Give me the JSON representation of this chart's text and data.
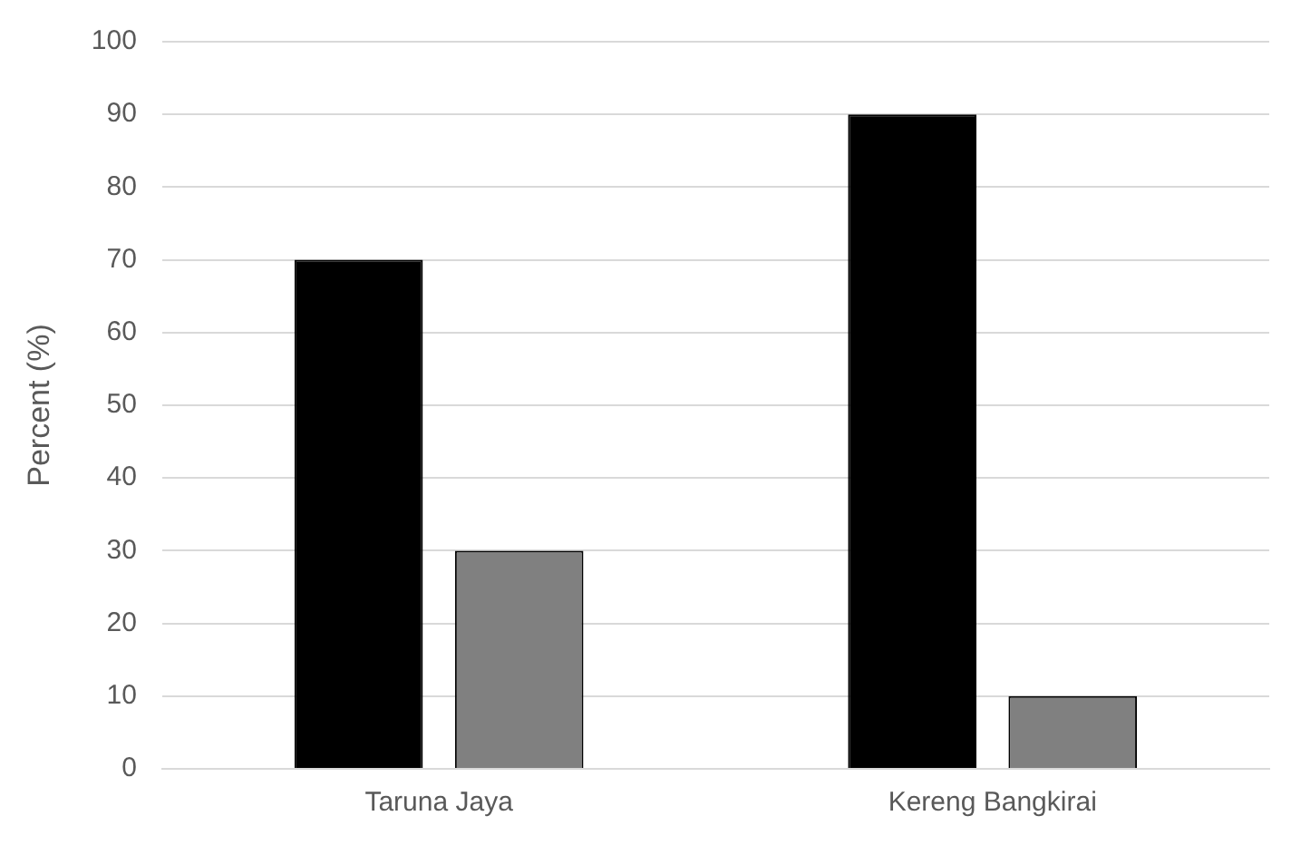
{
  "chart_data": {
    "type": "bar",
    "ylabel": "Percent (%)",
    "categories": [
      "Taruna Jaya",
      "Kereng Bangkirai"
    ],
    "series": [
      {
        "color": "#000000",
        "values": [
          70,
          90
        ]
      },
      {
        "color": "#808080",
        "values": [
          30,
          10
        ]
      }
    ],
    "ylim": [
      0,
      100
    ],
    "yticks": [
      0,
      10,
      20,
      30,
      40,
      50,
      60,
      70,
      80,
      90,
      100
    ],
    "grid": "y",
    "legend": false
  }
}
